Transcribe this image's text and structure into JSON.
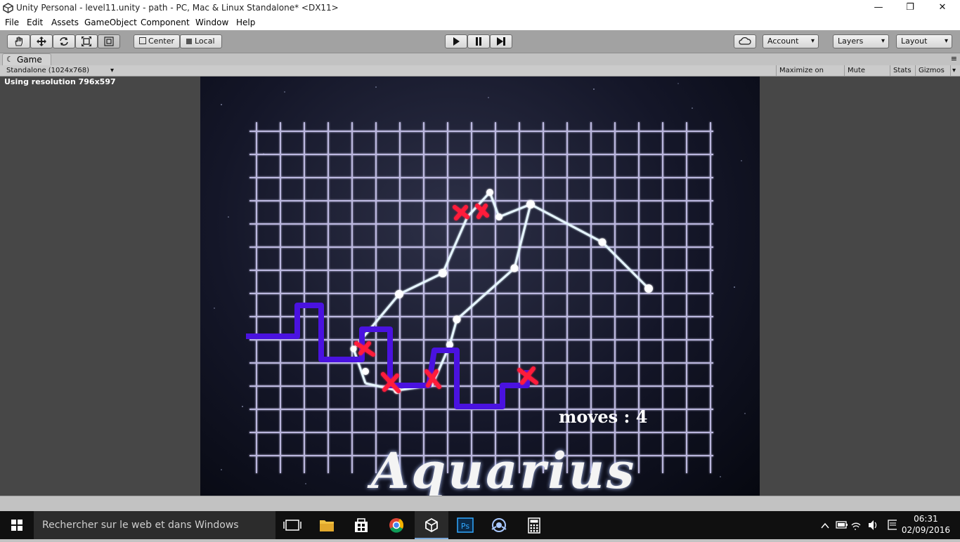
{
  "window": {
    "title": "Unity Personal - level11.unity - path - PC, Mac & Linux Standalone* <DX11>",
    "minimize_label": "—",
    "restore_label": "❐",
    "close_label": "✕"
  },
  "menu": [
    "File",
    "Edit",
    "Assets",
    "GameObject",
    "Component",
    "Window",
    "Help"
  ],
  "toolbar": {
    "pivot_label": "Center",
    "space_label": "Local",
    "account_label": "Account",
    "layers_label": "Layers",
    "layout_label": "Layout"
  },
  "game_tab": {
    "label": "Game",
    "aspect_label": "Standalone (1024x768)",
    "maximize_label": "Maximize on Play",
    "mute_label": "Mute audio",
    "stats_label": "Stats",
    "gizmos_label": "Gizmos"
  },
  "view": {
    "resolution_text": "Using resolution 796x597",
    "moves_text": "moves : 4",
    "level_title": "Aquarius"
  },
  "taskbar": {
    "search_placeholder": "Rechercher sur le web et dans Windows",
    "time": "06:31",
    "date": "02/09/2016",
    "pinned_icons": [
      "task-view-icon",
      "file-explorer-icon",
      "store-icon",
      "chrome-icon",
      "unity-icon",
      "photoshop-icon",
      "network-app-icon",
      "calculator-icon"
    ]
  },
  "colors": {
    "path": "#4a12e0",
    "constellation": "#d8f0ff",
    "marker": "#ff1a3a"
  }
}
